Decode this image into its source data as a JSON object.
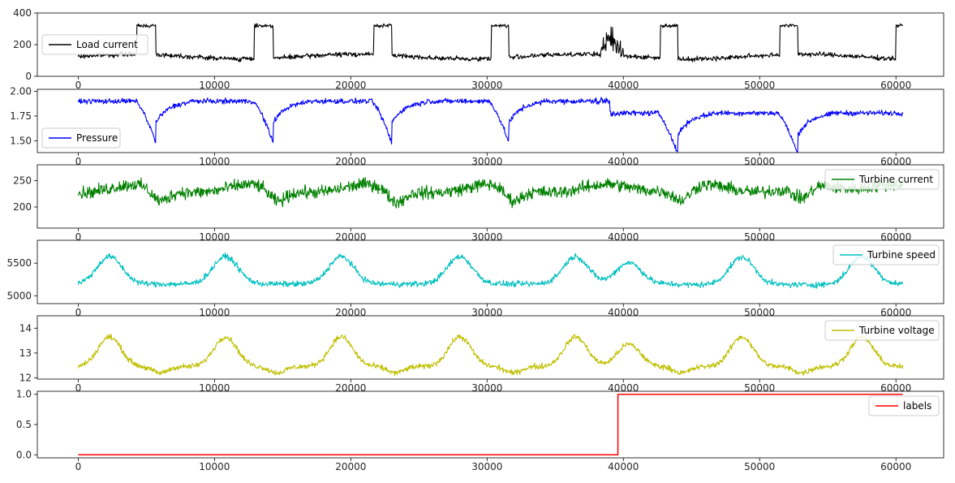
{
  "chart_data": [
    {
      "type": "line",
      "series": [
        {
          "name": "Load current",
          "color": "#000000",
          "profile": "load"
        }
      ],
      "xlim": [
        -3000,
        63500
      ],
      "ylim": [
        0,
        400
      ],
      "xticks": [
        0,
        10000,
        20000,
        30000,
        40000,
        50000,
        60000
      ],
      "yticks": [
        0,
        200,
        400
      ],
      "ytick_labels": [
        "0",
        "200",
        "400"
      ],
      "legend_loc": "center-left",
      "x_range": [
        0,
        60500
      ]
    },
    {
      "type": "line",
      "series": [
        {
          "name": "Pressure",
          "color": "#0000ff",
          "profile": "pressure"
        }
      ],
      "xlim": [
        -3000,
        63500
      ],
      "ylim": [
        1.38,
        2.02
      ],
      "xticks": [
        0,
        10000,
        20000,
        30000,
        40000,
        50000,
        60000
      ],
      "yticks": [
        1.5,
        1.75,
        2.0
      ],
      "ytick_labels": [
        "1.50",
        "1.75",
        "2.00"
      ],
      "legend_loc": "lower-left",
      "x_range": [
        0,
        60500
      ]
    },
    {
      "type": "line",
      "series": [
        {
          "name": "Turbine current",
          "color": "#008000",
          "profile": "tcur"
        }
      ],
      "xlim": [
        -3000,
        63500
      ],
      "ylim": [
        160,
        280
      ],
      "xticks": [
        0,
        10000,
        20000,
        30000,
        40000,
        50000,
        60000
      ],
      "yticks": [
        200,
        250
      ],
      "ytick_labels": [
        "200",
        "250"
      ],
      "legend_loc": "upper-right",
      "x_range": [
        0,
        60500
      ]
    },
    {
      "type": "line",
      "series": [
        {
          "name": "Turbine speed",
          "color": "#00bfbf",
          "profile": "tspeed"
        }
      ],
      "xlim": [
        -3000,
        63500
      ],
      "ylim": [
        4880,
        5850
      ],
      "xticks": [
        0,
        10000,
        20000,
        30000,
        40000,
        50000,
        60000
      ],
      "yticks": [
        5000,
        5500
      ],
      "ytick_labels": [
        "5000",
        "5500"
      ],
      "legend_loc": "upper-right",
      "x_range": [
        0,
        60500
      ]
    },
    {
      "type": "line",
      "series": [
        {
          "name": "Turbine voltage",
          "color": "#bfbf00",
          "profile": "tvolt"
        }
      ],
      "xlim": [
        -3000,
        63500
      ],
      "ylim": [
        11.95,
        14.5
      ],
      "xticks": [
        0,
        10000,
        20000,
        30000,
        40000,
        50000,
        60000
      ],
      "yticks": [
        12,
        13,
        14
      ],
      "ytick_labels": [
        "12",
        "13",
        "14"
      ],
      "legend_loc": "upper-right",
      "x_range": [
        0,
        60500
      ]
    },
    {
      "type": "line",
      "series": [
        {
          "name": "labels",
          "color": "#ff0000",
          "profile": "labels"
        }
      ],
      "xlim": [
        -3000,
        63500
      ],
      "ylim": [
        -0.05,
        1.05
      ],
      "xticks": [
        0,
        10000,
        20000,
        30000,
        40000,
        50000,
        60000
      ],
      "xtick_labels": [
        "0",
        "10000",
        "20000",
        "30000",
        "40000",
        "50000",
        "60000"
      ],
      "yticks": [
        0,
        0.5,
        1.0
      ],
      "ytick_labels": [
        "0.0",
        "0.5",
        "1.0"
      ],
      "legend_loc": "upper-right",
      "x_range": [
        0,
        60500
      ],
      "step_x": 39600,
      "values_before": 0,
      "values_after": 1
    }
  ]
}
